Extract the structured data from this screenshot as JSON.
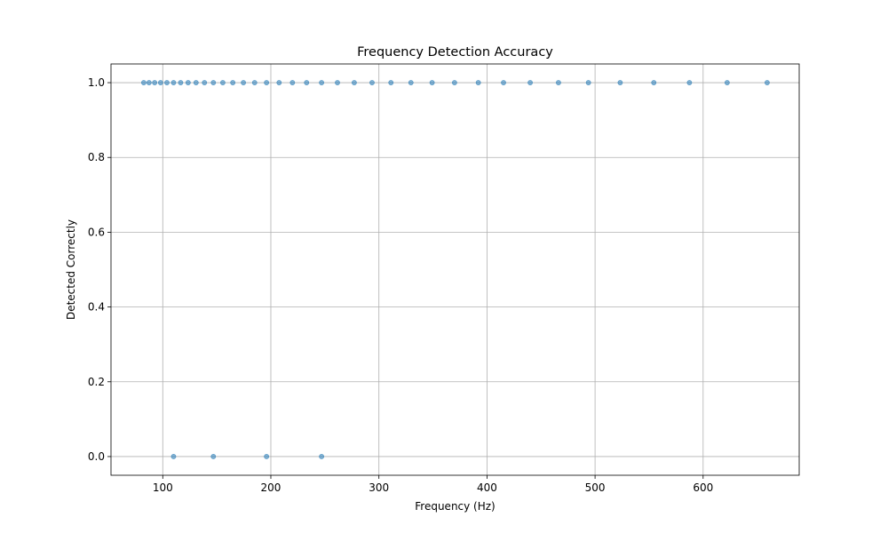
{
  "chart_data": {
    "type": "scatter",
    "title": "Frequency Detection Accuracy",
    "xlabel": "Frequency (Hz)",
    "ylabel": "Detected Correctly",
    "xlim": [
      52.1,
      688.9
    ],
    "ylim": [
      -0.05,
      1.05
    ],
    "xticks": [
      100,
      200,
      300,
      400,
      500,
      600
    ],
    "yticks": [
      0.0,
      0.2,
      0.4,
      0.6,
      0.8,
      1.0
    ],
    "xtick_labels": [
      "100",
      "200",
      "300",
      "400",
      "500",
      "600"
    ],
    "ytick_labels": [
      "0.0",
      "0.2",
      "0.4",
      "0.6",
      "0.8",
      "1.0"
    ],
    "grid": true,
    "marker_color": "#1f77b4",
    "series": [
      {
        "x": [
          82.41,
          87.31,
          92.5,
          98.0,
          103.83,
          110.0,
          116.54,
          123.47,
          130.81,
          138.59,
          146.83,
          155.56,
          164.81,
          174.61,
          185.0,
          196.0,
          207.65,
          220.0,
          233.08,
          246.94,
          261.63,
          277.18,
          293.66,
          311.13,
          329.63,
          349.23,
          369.99,
          392.0,
          415.3,
          440.0,
          466.16,
          493.88,
          523.25,
          554.37,
          587.33,
          622.25,
          659.26,
          110.0,
          146.83,
          196.0,
          246.94
        ],
        "y": [
          1,
          1,
          1,
          1,
          1,
          1,
          1,
          1,
          1,
          1,
          1,
          1,
          1,
          1,
          1,
          1,
          1,
          1,
          1,
          1,
          1,
          1,
          1,
          1,
          1,
          1,
          1,
          1,
          1,
          1,
          1,
          1,
          1,
          1,
          1,
          1,
          1,
          0,
          0,
          0,
          0
        ]
      }
    ]
  }
}
